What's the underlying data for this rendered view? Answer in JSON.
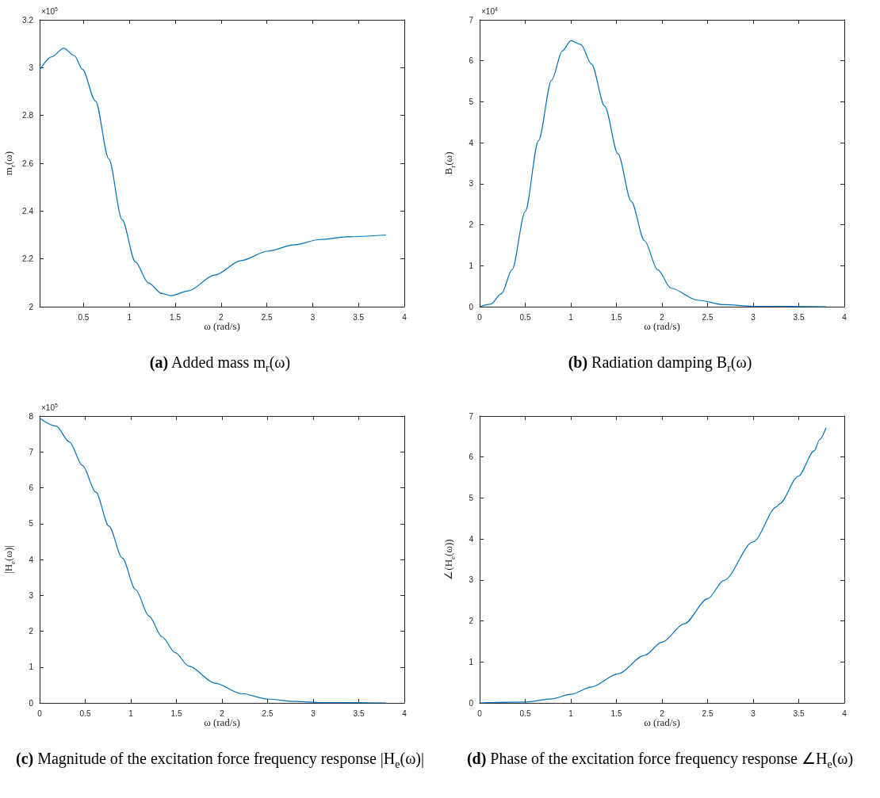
{
  "chart_data": [
    {
      "type": "line",
      "title": "(a) Added mass m$_{r}$(ω)",
      "xlabel": "ω (rad/s)",
      "ylabel": "m$_{r}$(ω)",
      "annotations": [
        "×10$^{5}$"
      ],
      "color": "#0072bd",
      "xlim": [
        0.02,
        4
      ],
      "xticks": [
        0.5,
        1,
        1.5,
        2,
        2.5,
        3,
        3.5,
        4
      ],
      "ylim": [
        2,
        3.2
      ],
      "yticks": [
        2,
        2.2,
        2.4,
        2.6,
        2.8,
        3,
        3.2
      ],
      "x": [
        0.02,
        0.15,
        0.283,
        0.4,
        0.486,
        0.63,
        0.775,
        0.92,
        1.064,
        1.208,
        1.353,
        1.454,
        1.64,
        1.93,
        2.22,
        2.51,
        2.8,
        3.08,
        3.37,
        3.8
      ],
      "values": [
        2.99,
        3.045,
        3.081,
        3.05,
        2.993,
        2.86,
        2.618,
        2.364,
        2.188,
        2.099,
        2.055,
        2.046,
        2.066,
        2.132,
        2.193,
        2.232,
        2.259,
        2.281,
        2.292,
        2.3
      ]
    },
    {
      "type": "line",
      "title": "(b) Radiation damping B$_{r}$(ω)",
      "xlabel": "ω (rad/s)",
      "ylabel": "B$_{r}$(ω)",
      "annotations": [
        "×10$^{4}$"
      ],
      "color": "#0072bd",
      "xlim": [
        0,
        4
      ],
      "xticks": [
        0,
        0.5,
        1,
        1.5,
        2,
        2.5,
        3,
        3.5,
        4
      ],
      "ylim": [
        0,
        7
      ],
      "yticks": [
        0,
        1,
        2,
        3,
        4,
        5,
        6,
        7
      ],
      "x": [
        0,
        0.12,
        0.24,
        0.355,
        0.5,
        0.645,
        0.79,
        0.907,
        1.0,
        1.11,
        1.227,
        1.372,
        1.517,
        1.663,
        1.808,
        1.953,
        2.1,
        2.39,
        2.68,
        3.0,
        3.8
      ],
      "values": [
        0,
        0.06,
        0.32,
        0.9,
        2.32,
        4.05,
        5.53,
        6.24,
        6.49,
        6.4,
        5.92,
        4.89,
        3.73,
        2.57,
        1.61,
        0.9,
        0.45,
        0.16,
        0.05,
        0.01,
        0
      ]
    },
    {
      "type": "line",
      "title": "(c) Magnitude of the excitation force frequency response |H$_{e}$(ω)|",
      "xlabel": "ω (rad/s)",
      "ylabel": "|H$_{e}$(ω)|",
      "annotations": [
        "×10$^{5}$"
      ],
      "color": "#0072bd",
      "xlim": [
        0,
        4
      ],
      "xticks": [
        0,
        0.5,
        1,
        1.5,
        2,
        2.5,
        3,
        3.5,
        4
      ],
      "ylim": [
        0,
        8
      ],
      "yticks": [
        0,
        1,
        2,
        3,
        4,
        5,
        6,
        7,
        8
      ],
      "x": [
        0,
        0.18,
        0.326,
        0.47,
        0.616,
        0.76,
        0.907,
        1.052,
        1.198,
        1.343,
        1.488,
        1.634,
        1.924,
        2.215,
        2.5,
        2.8,
        3.09,
        3.8
      ],
      "values": [
        7.94,
        7.72,
        7.28,
        6.62,
        5.88,
        4.93,
        4.04,
        3.16,
        2.43,
        1.84,
        1.4,
        1.03,
        0.55,
        0.26,
        0.11,
        0.04,
        0.01,
        0
      ]
    },
    {
      "type": "line",
      "title": "(d) Phase of the excitation force frequency response ∠H$_{e}$(ω)",
      "xlabel": "ω (rad/s)",
      "ylabel": "∠(H$_{e}$(ω))",
      "color": "#0072bd",
      "xlim": [
        0,
        4
      ],
      "xticks": [
        0,
        0.5,
        1,
        1.5,
        2,
        2.5,
        3,
        3.5,
        4
      ],
      "ylim": [
        0,
        7
      ],
      "yticks": [
        0,
        1,
        2,
        3,
        4,
        5,
        6,
        7
      ],
      "x": [
        0,
        0.5,
        0.79,
        1.0,
        1.227,
        1.517,
        1.808,
        2.0,
        2.244,
        2.5,
        2.68,
        3.0,
        3.26,
        3.29,
        3.494,
        3.67,
        3.73,
        3.8
      ],
      "values": [
        0,
        0.02,
        0.1,
        0.21,
        0.39,
        0.71,
        1.16,
        1.48,
        1.93,
        2.54,
        2.99,
        3.93,
        4.79,
        4.86,
        5.53,
        6.15,
        6.43,
        6.72
      ]
    }
  ]
}
